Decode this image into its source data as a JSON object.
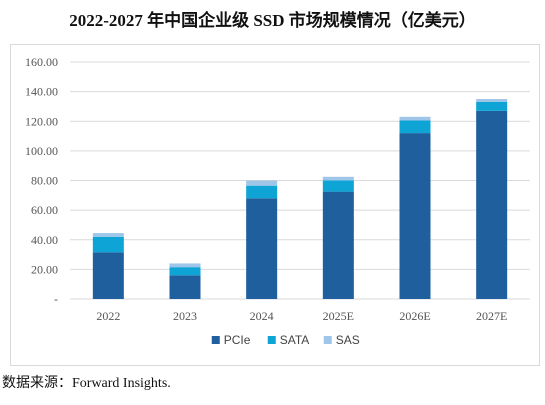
{
  "chart_data": {
    "type": "bar",
    "stacked": true,
    "title": "2022-2027 年中国企业级 SSD 市场规模情况（亿美元）",
    "categories": [
      "2022",
      "2023",
      "2024",
      "2025E",
      "2026E",
      "2027E"
    ],
    "series": [
      {
        "name": "PCIe",
        "color": "#1f5f9e",
        "values": [
          31.5,
          16,
          68,
          72.5,
          112,
          127
        ]
      },
      {
        "name": "SATA",
        "color": "#0ea5d6",
        "values": [
          10.5,
          5.5,
          8.5,
          7.5,
          8.5,
          6
        ]
      },
      {
        "name": "SAS",
        "color": "#9fc5e8",
        "values": [
          2.5,
          2.5,
          3.5,
          2.5,
          2.5,
          2
        ]
      }
    ],
    "ylim": [
      0,
      160
    ],
    "yticks": [
      "-",
      "20.00",
      "40.00",
      "60.00",
      "80.00",
      "100.00",
      "120.00",
      "140.00",
      "160.00"
    ],
    "grid": true,
    "legend_position": "bottom"
  },
  "source_text": "数据来源：Forward Insights."
}
